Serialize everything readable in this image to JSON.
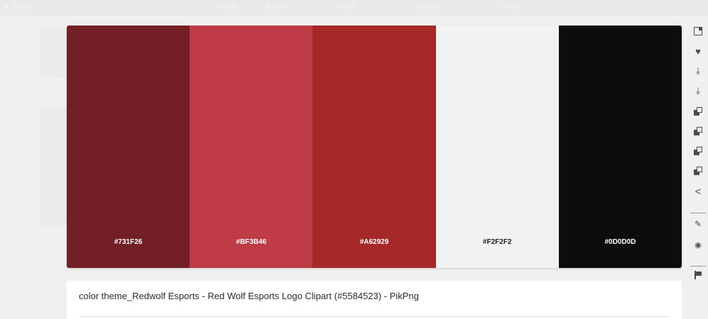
{
  "app": {
    "brand": "e Color",
    "nav": [
      "Create",
      "Explore",
      "Trends",
      "Library",
      "Themes"
    ]
  },
  "palette": {
    "swatches": [
      {
        "hex": "#731F26",
        "color": "#731F26",
        "text_color": "#ffffff"
      },
      {
        "hex": "#BF3B46",
        "color": "#BF3B46",
        "text_color": "#ffffff"
      },
      {
        "hex": "#A62929",
        "color": "#A62929",
        "text_color": "#ffffff"
      },
      {
        "hex": "#F2F2F2",
        "color": "#F2F2F2",
        "text_color": "#222222"
      },
      {
        "hex": "#0D0D0D",
        "color": "#0D0D0D",
        "text_color": "#ffffff"
      }
    ]
  },
  "theme": {
    "title": "color theme_Redwolf Esports - Red Wolf Esports Logo Clipart (#5584523) - PikPng"
  },
  "rail": {
    "icons": [
      "open-in-icon",
      "heart-icon",
      "download-icon",
      "download-icon",
      "copy-icon",
      "copy-icon",
      "copy-icon",
      "copy-icon",
      "share-icon",
      "edit-icon",
      "view-icon",
      "flag-icon"
    ]
  }
}
